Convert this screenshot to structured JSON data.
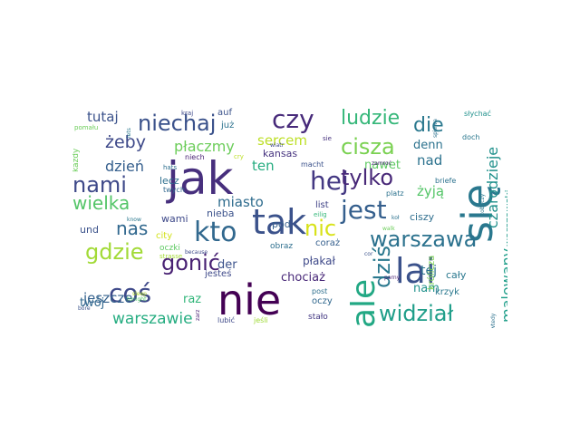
{
  "words": [
    {
      "text": "nie",
      "color": "#440154"
    },
    {
      "text": "jak",
      "color": "#472f7d"
    },
    {
      "text": "się",
      "color": "#2a788e"
    },
    {
      "text": "tak",
      "color": "#3b528b"
    },
    {
      "text": "lai",
      "color": "#3b528b"
    },
    {
      "text": "ale",
      "color": "#22a884"
    },
    {
      "text": "kto",
      "color": "#31688e"
    },
    {
      "text": "jest",
      "color": "#355f8d"
    },
    {
      "text": "hej",
      "color": "#443983"
    },
    {
      "text": "coś",
      "color": "#3e4989"
    },
    {
      "text": "czy",
      "color": "#472a7a"
    },
    {
      "text": "widział",
      "color": "#1f9e89"
    },
    {
      "text": "niechaj",
      "color": "#3b528b"
    },
    {
      "text": "cisza",
      "color": "#7ad151"
    },
    {
      "text": "warszawa",
      "color": "#2c728e"
    },
    {
      "text": "tylko",
      "color": "#482878"
    },
    {
      "text": "dziś",
      "color": "#2a788e"
    },
    {
      "text": "nami",
      "color": "#3e4989"
    },
    {
      "text": "gonić",
      "color": "#482173"
    },
    {
      "text": "gdzie",
      "color": "#a2da37"
    },
    {
      "text": "nic",
      "color": "#d8e219"
    },
    {
      "text": "ludzie",
      "color": "#35b779"
    },
    {
      "text": "die",
      "color": "#2a788e"
    },
    {
      "text": "wielka",
      "color": "#54c568"
    },
    {
      "text": "nas",
      "color": "#31688e"
    },
    {
      "text": "malowany",
      "color": "#1f9e89"
    },
    {
      "text": "czarodzieje",
      "color": "#21918c"
    },
    {
      "text": "warszawie",
      "color": "#26ad81"
    },
    {
      "text": "żeby",
      "color": "#3e4989"
    },
    {
      "text": "płaczmy",
      "color": "#6ccd5a"
    },
    {
      "text": "jeszcze",
      "color": "#34618d"
    },
    {
      "text": "miasto",
      "color": "#2f6c8e"
    },
    {
      "text": "tutaj",
      "color": "#3b528b"
    },
    {
      "text": "dzień",
      "color": "#355f8d"
    },
    {
      "text": "sercem",
      "color": "#bddf26"
    },
    {
      "text": "ten",
      "color": "#27ad81"
    },
    {
      "text": "nad",
      "color": "#2c728e"
    },
    {
      "text": "nawet",
      "color": "#5ec962"
    },
    {
      "text": "denn",
      "color": "#2c728e"
    },
    {
      "text": "żyją",
      "color": "#54c568"
    },
    {
      "text": "tej",
      "color": "#2c728e"
    },
    {
      "text": "nam",
      "color": "#21918c"
    },
    {
      "text": "raz",
      "color": "#32b67a"
    },
    {
      "text": "twój",
      "color": "#31688e"
    },
    {
      "text": "der",
      "color": "#3b528b"
    },
    {
      "text": "chociaż",
      "color": "#482878"
    },
    {
      "text": "płakał",
      "color": "#3e4989"
    },
    {
      "text": "lecz",
      "color": "#2e6f8e"
    },
    {
      "text": "wami",
      "color": "#3e4989"
    },
    {
      "text": "nieba",
      "color": "#3b528b"
    },
    {
      "text": "und",
      "color": "#3b528b"
    },
    {
      "text": "pod",
      "color": "#355f8d"
    },
    {
      "text": "kansas",
      "color": "#46337f"
    },
    {
      "text": "warszawski",
      "color": "#1f9a8a"
    },
    {
      "text": "ciszy",
      "color": "#2e6e8e"
    },
    {
      "text": "cały",
      "color": "#2a788e"
    },
    {
      "text": "jesteś",
      "color": "#3e4989"
    },
    {
      "text": "koł",
      "color": "#2c728e"
    },
    {
      "text": "oczy",
      "color": "#31688e"
    },
    {
      "text": "list",
      "color": "#414487"
    },
    {
      "text": "auf",
      "color": "#3b528b"
    },
    {
      "text": "już",
      "color": "#2c728e"
    },
    {
      "text": "kraj",
      "color": "#3e4989"
    },
    {
      "text": "krzyk",
      "color": "#2a788e"
    },
    {
      "text": "królicza",
      "color": "#7ad151"
    },
    {
      "text": "cor",
      "color": "#3b528b"
    },
    {
      "text": "coraż",
      "color": "#355f8d"
    },
    {
      "text": "city",
      "color": "#d2e21b"
    },
    {
      "text": "oczki",
      "color": "#5ec962"
    },
    {
      "text": "obraz",
      "color": "#2e6f8e"
    },
    {
      "text": "stało",
      "color": "#443983"
    },
    {
      "text": "lubić",
      "color": "#3e4989"
    },
    {
      "text": "jeśli",
      "color": "#a0da39"
    },
    {
      "text": "post",
      "color": "#2e6f8e"
    },
    {
      "text": "każdy",
      "color": "#6ccd5a"
    },
    {
      "text": "niech",
      "color": "#482173"
    },
    {
      "text": "macht",
      "color": "#3b528b"
    },
    {
      "text": "twych",
      "color": "#31688e"
    },
    {
      "text": "hats",
      "color": "#2e6f8e"
    },
    {
      "text": "słychać",
      "color": "#21918c"
    },
    {
      "text": "doch",
      "color": "#2a788e"
    },
    {
      "text": "sie",
      "color": "#46327e"
    },
    {
      "text": "zamroć",
      "color": "#482173"
    },
    {
      "text": "cry",
      "color": "#bddf26"
    },
    {
      "text": "platz",
      "color": "#2c728e"
    },
    {
      "text": "briefe",
      "color": "#2c728e"
    },
    {
      "text": "eilig",
      "color": "#35b779"
    },
    {
      "text": "strasse",
      "color": "#a5db36"
    },
    {
      "text": "because",
      "color": "#3e4989"
    },
    {
      "text": "know",
      "color": "#2a788e"
    },
    {
      "text": "sleep",
      "color": "#b5de2b"
    },
    {
      "text": "bore",
      "color": "#3b528b"
    },
    {
      "text": "parny",
      "color": "#482173"
    },
    {
      "text": "zobaczy",
      "color": "#2a788e"
    },
    {
      "text": "walk",
      "color": "#6ccd5a"
    },
    {
      "text": "lets",
      "color": "#2a788e"
    },
    {
      "text": "pomału",
      "color": "#6ccd5a"
    },
    {
      "text": "spiewa",
      "color": "#2c728e"
    },
    {
      "text": "wtedy",
      "color": "#2c728e"
    },
    {
      "text": "zarz",
      "color": "#482173"
    },
    {
      "text": "tonight",
      "color": "#54c568"
    },
    {
      "text": "wiatr",
      "color": "#3e4989"
    }
  ]
}
